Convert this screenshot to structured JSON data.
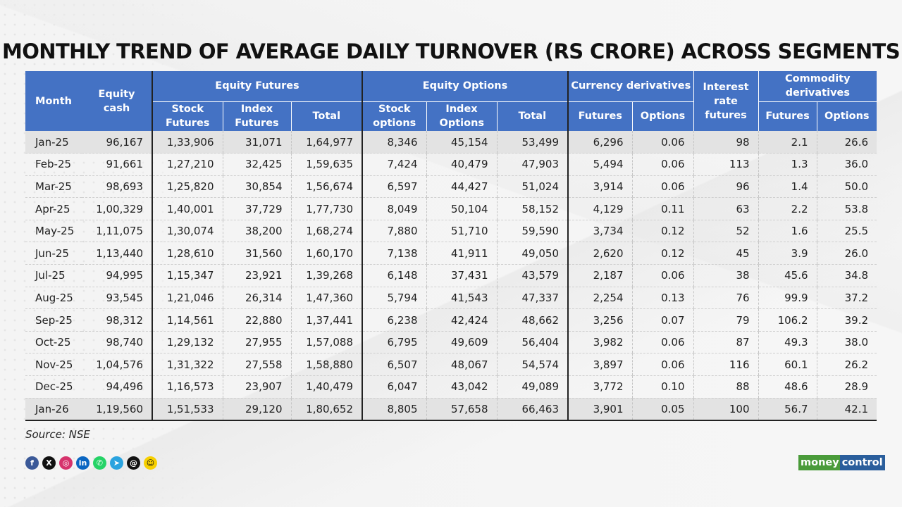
{
  "title": "MONTHLY TREND OF AVERAGE DAILY TURNOVER (RS CRORE) ACROSS SEGMENTS",
  "headers": {
    "month": "Month",
    "equity_cash": "Equity cash",
    "equity_futures": "Equity Futures",
    "equity_options": "Equity Options",
    "currency_derivatives": "Currency derivatives",
    "interest_rate_futures": "Interest rate futures",
    "commodity_derivatives": "Commodity derivatives",
    "stock_futures": "Stock Futures",
    "index_futures": "Index Futures",
    "total_futures": "Total",
    "stock_options": "Stock options",
    "index_options": "Index Options",
    "total_options": "Total",
    "currency_futures": "Futures",
    "currency_options": "Options",
    "commodity_futures": "Futures",
    "commodity_options": "Options"
  },
  "rows": [
    [
      "Jan-25",
      "96,167",
      "1,33,906",
      "31,071",
      "1,64,977",
      "8,346",
      "45,154",
      "53,499",
      "6,296",
      "0.06",
      "98",
      "2.1",
      "26.6"
    ],
    [
      "Feb-25",
      "91,661",
      "1,27,210",
      "32,425",
      "1,59,635",
      "7,424",
      "40,479",
      "47,903",
      "5,494",
      "0.06",
      "113",
      "1.3",
      "36.0"
    ],
    [
      "Mar-25",
      "98,693",
      "1,25,820",
      "30,854",
      "1,56,674",
      "6,597",
      "44,427",
      "51,024",
      "3,914",
      "0.06",
      "96",
      "1.4",
      "50.0"
    ],
    [
      "Apr-25",
      "1,00,329",
      "1,40,001",
      "37,729",
      "1,77,730",
      "8,049",
      "50,104",
      "58,152",
      "4,129",
      "0.11",
      "63",
      "2.2",
      "53.8"
    ],
    [
      "May-25",
      "1,11,075",
      "1,30,074",
      "38,200",
      "1,68,274",
      "7,880",
      "51,710",
      "59,590",
      "3,734",
      "0.12",
      "52",
      "1.6",
      "25.5"
    ],
    [
      "Jun-25",
      "1,13,440",
      "1,28,610",
      "31,560",
      "1,60,170",
      "7,138",
      "41,911",
      "49,050",
      "2,620",
      "0.12",
      "45",
      "3.9",
      "26.0"
    ],
    [
      "Jul-25",
      "94,995",
      "1,15,347",
      "23,921",
      "1,39,268",
      "6,148",
      "37,431",
      "43,579",
      "2,187",
      "0.06",
      "38",
      "45.6",
      "34.8"
    ],
    [
      "Aug-25",
      "93,545",
      "1,21,046",
      "26,314",
      "1,47,360",
      "5,794",
      "41,543",
      "47,337",
      "2,254",
      "0.13",
      "76",
      "99.9",
      "37.2"
    ],
    [
      "Sep-25",
      "98,312",
      "1,14,561",
      "22,880",
      "1,37,441",
      "6,238",
      "42,424",
      "48,662",
      "3,256",
      "0.07",
      "79",
      "106.2",
      "39.2"
    ],
    [
      "Oct-25",
      "98,740",
      "1,29,132",
      "27,955",
      "1,57,088",
      "6,795",
      "49,609",
      "56,404",
      "3,982",
      "0.06",
      "87",
      "49.3",
      "38.0"
    ],
    [
      "Nov-25",
      "1,04,576",
      "1,31,322",
      "27,558",
      "1,58,880",
      "6,507",
      "48,067",
      "54,574",
      "3,897",
      "0.06",
      "116",
      "60.1",
      "26.2"
    ],
    [
      "Dec-25",
      "94,496",
      "1,16,573",
      "23,907",
      "1,40,479",
      "6,047",
      "43,042",
      "49,089",
      "3,772",
      "0.10",
      "88",
      "48.6",
      "28.9"
    ],
    [
      "Jan-26",
      "1,19,560",
      "1,51,533",
      "29,120",
      "1,80,652",
      "8,805",
      "57,658",
      "66,463",
      "3,901",
      "0.05",
      "100",
      "56.7",
      "42.1"
    ]
  ],
  "source": "Source: NSE",
  "social_icons": [
    {
      "name": "facebook-icon",
      "glyph": "f",
      "color": "#3b5998"
    },
    {
      "name": "x-icon",
      "glyph": "X",
      "color": "#111111"
    },
    {
      "name": "instagram-icon",
      "glyph": "◎",
      "color": "#d6336c"
    },
    {
      "name": "linkedin-icon",
      "glyph": "in",
      "color": "#0a66c2"
    },
    {
      "name": "whatsapp-icon",
      "glyph": "✆",
      "color": "#25d366"
    },
    {
      "name": "telegram-icon",
      "glyph": "➤",
      "color": "#2aa3df"
    },
    {
      "name": "threads-icon",
      "glyph": "@",
      "color": "#111111"
    },
    {
      "name": "snapchat-icon",
      "glyph": "☺",
      "color": "#f7d000"
    }
  ],
  "logo": {
    "part1": "money",
    "part2": "control"
  },
  "colors": {
    "header_bg": "#4472c4",
    "shade_row": "#e3e3e3",
    "logo_green": "#4a9b3a",
    "logo_blue": "#2a5e9c"
  }
}
